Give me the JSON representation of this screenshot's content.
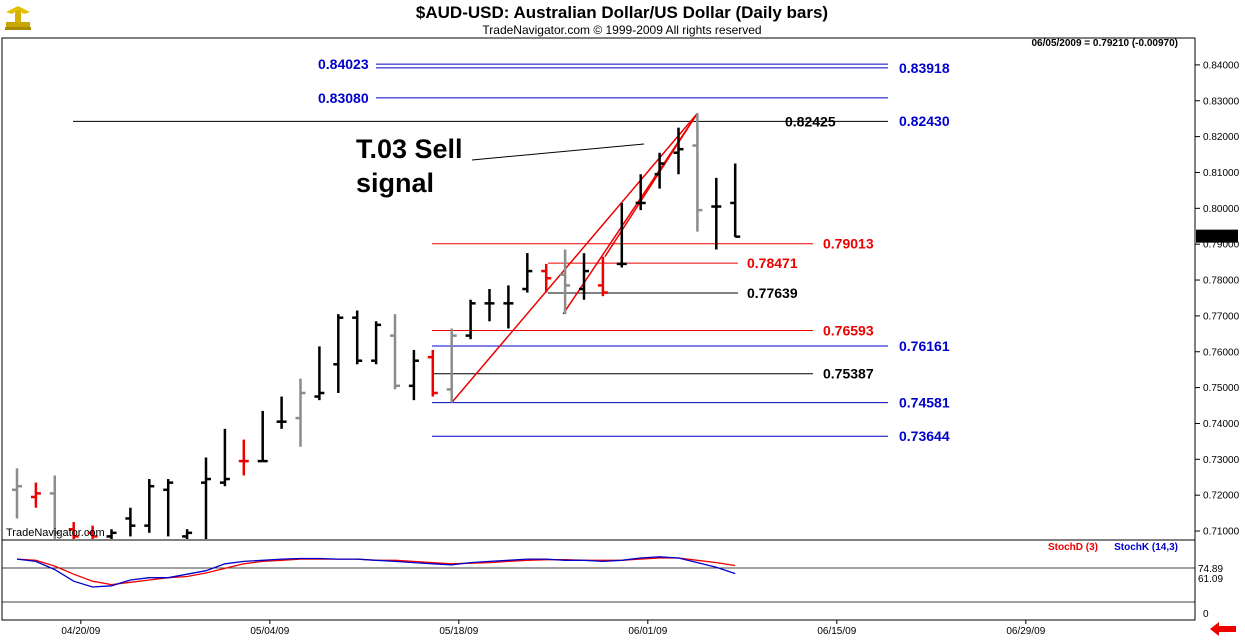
{
  "header": {
    "title": "$AUD-USD:  Australian Dollar/US Dollar  (Daily bars)",
    "subtitle": "TradeNavigator.com © 1999-2009 All rights reserved",
    "status": "06/05/2009 = 0.79210 (-0.00970)",
    "watermark": "TradeNavigator.com"
  },
  "annotation": {
    "line1": "T.03 Sell",
    "line2": "signal"
  },
  "colors": {
    "blue": "#0000cc",
    "red": "#ee0000",
    "black": "#000000",
    "gray": "#8c8c8c",
    "stochD": "#ee0000",
    "stochK": "#0000cc"
  },
  "chart_data": {
    "type": "ohlc",
    "price_axis": {
      "ylim": [
        0.7075,
        0.8475
      ],
      "ticks": [
        "0.84000",
        "0.83000",
        "0.82000",
        "0.81000",
        "0.80000",
        "0.79000",
        "0.78000",
        "0.77000",
        "0.76000",
        "0.75000",
        "0.74000",
        "0.73000",
        "0.72000",
        "0.71000"
      ],
      "last_price_label": "0.79210",
      "last_price": 0.7921
    },
    "date_axis": {
      "ticks": [
        {
          "label": "04/20/09",
          "bar": 2
        },
        {
          "label": "05/04/09",
          "bar": 12
        },
        {
          "label": "05/18/09",
          "bar": 22
        },
        {
          "label": "06/01/09",
          "bar": 32
        },
        {
          "label": "06/15/09",
          "bar": 42
        },
        {
          "label": "06/29/09",
          "bar": 52
        }
      ]
    },
    "bars": [
      {
        "o": 0.7215,
        "h": 0.7275,
        "l": 0.7135,
        "c": 0.7225,
        "color": "gray"
      },
      {
        "o": 0.7195,
        "h": 0.7235,
        "l": 0.7165,
        "c": 0.7205,
        "color": "red"
      },
      {
        "o": 0.7205,
        "h": 0.7255,
        "l": 0.7075,
        "c": 0.7095,
        "color": "gray"
      },
      {
        "o": 0.7105,
        "h": 0.7125,
        "l": 0.7075,
        "c": 0.7085,
        "color": "red"
      },
      {
        "o": 0.7095,
        "h": 0.7115,
        "l": 0.7075,
        "c": 0.7085,
        "color": "red"
      },
      {
        "o": 0.7085,
        "h": 0.7105,
        "l": 0.7075,
        "c": 0.7095,
        "color": "black"
      },
      {
        "o": 0.7135,
        "h": 0.7165,
        "l": 0.7085,
        "c": 0.7115,
        "color": "black"
      },
      {
        "o": 0.7115,
        "h": 0.7245,
        "l": 0.7095,
        "c": 0.7225,
        "color": "black"
      },
      {
        "o": 0.7215,
        "h": 0.7245,
        "l": 0.7085,
        "c": 0.7235,
        "color": "black"
      },
      {
        "o": 0.7085,
        "h": 0.7105,
        "l": 0.7075,
        "c": 0.7095,
        "color": "black"
      },
      {
        "o": 0.7235,
        "h": 0.7305,
        "l": 0.7075,
        "c": 0.7245,
        "color": "black"
      },
      {
        "o": 0.7235,
        "h": 0.7385,
        "l": 0.7225,
        "c": 0.7245,
        "color": "black"
      },
      {
        "o": 0.7295,
        "h": 0.7355,
        "l": 0.7255,
        "c": 0.7295,
        "color": "red"
      },
      {
        "o": 0.7295,
        "h": 0.7435,
        "l": 0.7295,
        "c": 0.7295,
        "color": "black"
      },
      {
        "o": 0.7405,
        "h": 0.7475,
        "l": 0.7385,
        "c": 0.7405,
        "color": "black"
      },
      {
        "o": 0.7415,
        "h": 0.7525,
        "l": 0.7335,
        "c": 0.7485,
        "color": "gray"
      },
      {
        "o": 0.7475,
        "h": 0.7615,
        "l": 0.7465,
        "c": 0.7485,
        "color": "black"
      },
      {
        "o": 0.7565,
        "h": 0.7705,
        "l": 0.7485,
        "c": 0.7695,
        "color": "black"
      },
      {
        "o": 0.7695,
        "h": 0.7715,
        "l": 0.7565,
        "c": 0.7575,
        "color": "black"
      },
      {
        "o": 0.7575,
        "h": 0.7685,
        "l": 0.7565,
        "c": 0.7675,
        "color": "black"
      },
      {
        "o": 0.7645,
        "h": 0.7705,
        "l": 0.7495,
        "c": 0.7505,
        "color": "gray"
      },
      {
        "o": 0.7505,
        "h": 0.7605,
        "l": 0.7465,
        "c": 0.7575,
        "color": "black"
      },
      {
        "o": 0.7585,
        "h": 0.7605,
        "l": 0.7475,
        "c": 0.7485,
        "color": "red"
      },
      {
        "o": 0.7495,
        "h": 0.7665,
        "l": 0.7458,
        "c": 0.7645,
        "color": "gray"
      },
      {
        "o": 0.7645,
        "h": 0.7745,
        "l": 0.7635,
        "c": 0.7735,
        "color": "black"
      },
      {
        "o": 0.7735,
        "h": 0.7775,
        "l": 0.7685,
        "c": 0.7735,
        "color": "black"
      },
      {
        "o": 0.7735,
        "h": 0.7785,
        "l": 0.7665,
        "c": 0.7735,
        "color": "black"
      },
      {
        "o": 0.7775,
        "h": 0.7875,
        "l": 0.7765,
        "c": 0.7825,
        "color": "black"
      },
      {
        "o": 0.7825,
        "h": 0.7845,
        "l": 0.7765,
        "c": 0.7805,
        "color": "red"
      },
      {
        "o": 0.7815,
        "h": 0.7885,
        "l": 0.7705,
        "c": 0.7785,
        "color": "gray"
      },
      {
        "o": 0.7775,
        "h": 0.7875,
        "l": 0.7745,
        "c": 0.7825,
        "color": "black"
      },
      {
        "o": 0.7785,
        "h": 0.7865,
        "l": 0.7755,
        "c": 0.7765,
        "color": "red"
      },
      {
        "o": 0.7845,
        "h": 0.8015,
        "l": 0.7835,
        "c": 0.7845,
        "color": "black"
      },
      {
        "o": 0.8015,
        "h": 0.8095,
        "l": 0.7995,
        "c": 0.8015,
        "color": "black"
      },
      {
        "o": 0.8095,
        "h": 0.8155,
        "l": 0.8055,
        "c": 0.8125,
        "color": "black"
      },
      {
        "o": 0.8155,
        "h": 0.8225,
        "l": 0.8095,
        "c": 0.8165,
        "color": "black"
      },
      {
        "o": 0.8175,
        "h": 0.8265,
        "l": 0.7935,
        "c": 0.7995,
        "color": "gray"
      },
      {
        "o": 0.8005,
        "h": 0.8085,
        "l": 0.7885,
        "c": 0.8005,
        "color": "black"
      },
      {
        "o": 0.8015,
        "h": 0.8125,
        "l": 0.792,
        "c": 0.7921,
        "color": "black"
      }
    ],
    "levels": [
      {
        "value": 0.84023,
        "label": "0.84023",
        "color": "blue",
        "side": "left"
      },
      {
        "value": 0.83918,
        "label": "0.83918",
        "color": "blue",
        "side": "right"
      },
      {
        "value": 0.8308,
        "label": "0.83080",
        "color": "blue",
        "side": "left"
      },
      {
        "value": 0.82425,
        "label": "0.82425",
        "color": "black",
        "side": "mid"
      },
      {
        "value": 0.8243,
        "label": "0.82430",
        "color": "blue",
        "side": "right"
      },
      {
        "value": 0.79013,
        "label": "0.79013",
        "color": "red",
        "side": "right"
      },
      {
        "value": 0.78471,
        "label": "0.78471",
        "color": "red",
        "side": "mid"
      },
      {
        "value": 0.77639,
        "label": "0.77639",
        "color": "black",
        "side": "mid"
      },
      {
        "value": 0.76593,
        "label": "0.76593",
        "color": "red",
        "side": "right"
      },
      {
        "value": 0.76161,
        "label": "0.76161",
        "color": "blue",
        "side": "right"
      },
      {
        "value": 0.75387,
        "label": "0.75387",
        "color": "black",
        "side": "right"
      },
      {
        "value": 0.74581,
        "label": "0.74581",
        "color": "blue",
        "side": "right"
      },
      {
        "value": 0.73644,
        "label": "0.73644",
        "color": "blue",
        "side": "right"
      }
    ],
    "indicator": {
      "legend_d": "StochD (3)",
      "legend_k": "StochK (14,3)",
      "ylim": [
        0,
        100
      ],
      "tick_zero": "0",
      "value_d": 74.89,
      "value_d_label": "74.89",
      "value_k": 61.09,
      "value_k_label": "61.09",
      "stochK": [
        86,
        82,
        68,
        48,
        38,
        40,
        50,
        54,
        54,
        60,
        66,
        78,
        82,
        84,
        86,
        87,
        87,
        86,
        86,
        84,
        82,
        80,
        78,
        76,
        80,
        82,
        84,
        86,
        86,
        84,
        84,
        82,
        84,
        88,
        90,
        88,
        80,
        72,
        61
      ],
      "stochD": [
        86,
        84,
        74,
        60,
        48,
        42,
        46,
        50,
        54,
        56,
        62,
        70,
        78,
        82,
        84,
        86,
        86,
        86,
        86,
        84,
        84,
        82,
        80,
        78,
        79,
        80,
        82,
        84,
        85,
        85,
        84,
        84,
        84,
        86,
        88,
        88,
        84,
        80,
        75
      ]
    }
  }
}
